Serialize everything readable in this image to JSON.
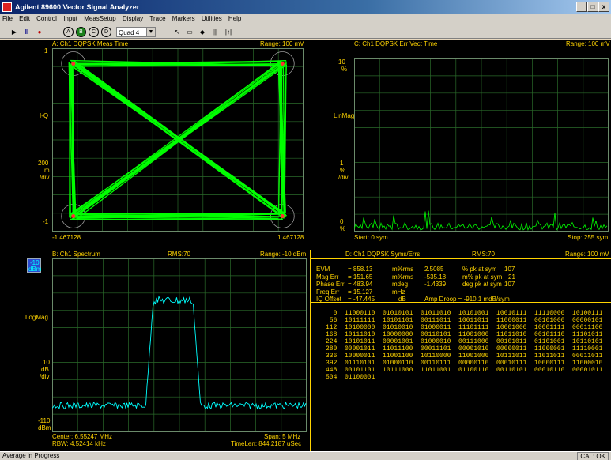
{
  "window": {
    "title": "Agilent 89600 Vector Signal Analyzer",
    "min": "_",
    "max": "□",
    "close": "x"
  },
  "menu": [
    "File",
    "Edit",
    "Control",
    "Input",
    "MeasSetup",
    "Display",
    "Trace",
    "Markers",
    "Utilities",
    "Help"
  ],
  "toolbar": {
    "play": "▶",
    "pause": "II",
    "record": "●",
    "traces": [
      "A",
      "B",
      "C",
      "D"
    ],
    "layout": "Quad 4",
    "tools": [
      "↖",
      "▭",
      "◆",
      "|||",
      "|↑|"
    ]
  },
  "colors": {
    "yellow": "#ffd400",
    "green": "#00ff00",
    "cyan": "#00ffff",
    "grid": "#2a6a2a"
  },
  "traceA": {
    "title": "A: Ch1 DQPSK Meas Time",
    "range": "Range: 100 mV",
    "y_top": "1",
    "y_label": "I-Q",
    "y_scale": [
      "200",
      "m",
      "/div"
    ],
    "y_bottom": "-1",
    "x_left": "-1.467128",
    "x_right": "1.467128"
  },
  "traceC": {
    "title": "C: Ch1 DQPSK Err Vect Time",
    "range": "Range: 100 mV",
    "y_top": [
      "10",
      "%"
    ],
    "y_label": "LinMag",
    "y_scale": [
      "1",
      "%",
      "/div"
    ],
    "y_bottom": [
      "0",
      "%"
    ],
    "start": "Start: 0  sym",
    "stop": "Stop: 255  sym"
  },
  "traceB": {
    "title": "B: Ch1 Spectrum",
    "rms": "RMS:70",
    "range": "Range: -10 dBm",
    "y_top": [
      "-10",
      "dBm"
    ],
    "y_label": "LogMag",
    "y_scale": [
      "10",
      "dB",
      "/div"
    ],
    "y_bottom": [
      "-110",
      "dBm"
    ],
    "center": "Center: 6.55247 MHz",
    "rbw": "RBW: 4.52414 kHz",
    "span": "Span: 5 MHz",
    "timelen": "TimeLen: 844.2187 uSec"
  },
  "traceD": {
    "title": "D: Ch1 DQPSK Syms/Errs",
    "rms": "RMS:70",
    "range": "Range: 100 mV",
    "measurements": [
      {
        "label": "EVM",
        "value": "= 858.13",
        "unit": "m%rms",
        "v2": "2.5085",
        "u2": "% pk  at  sym",
        "sym": "107"
      },
      {
        "label": "Mag Err",
        "value": "= 151.65",
        "unit": "m%rms",
        "v2": "-535.18",
        "u2": "m% pk  at  sym",
        "sym": "21"
      },
      {
        "label": "Phase Err",
        "value": "= 483.94",
        "unit": "mdeg",
        "v2": "-1.4339",
        "u2": "deg  pk  at  sym",
        "sym": "107"
      },
      {
        "label": "Freq  Err",
        "value": "= 15.127",
        "unit": "mHz",
        "v2": "",
        "u2": "",
        "sym": ""
      },
      {
        "label": "IQ  Offset",
        "value": "= -47.445",
        "unit": "dB",
        "v2": "Amp Droop  =  -910.1   mdB/sym",
        "u2": "",
        "sym": ""
      }
    ],
    "symbol_rows": [
      "  0  11000110  01010101  01011010  10101001  10010111  11110000  10100111",
      " 56  10111111  10101101  00111011  10011011  11000011  00101000  00000101",
      "112  10100000  01010010  01000011  11101111  10001000  10001111  00011100",
      "168  10111010  10000000  00110101  11001000  11011010  00101110  11101011",
      "224  10101011  00001001  01000010  00111000  00101011  01101001  10110101",
      "280  00001011  11011100  00011101  00001010  00000011  11000001  11110001",
      "336  10000011  11001100  10110000  11001000  10111011  11011011  00011011",
      "392  01110101  01000110  00110111  00000110  00010111  10000111  11000010",
      "448  00101101  10111000  11011001  01100110  00110101  00010110  00001011",
      "504  01100001"
    ]
  },
  "status": {
    "message": "Average in Progress",
    "cal": "CAL: OK"
  }
}
